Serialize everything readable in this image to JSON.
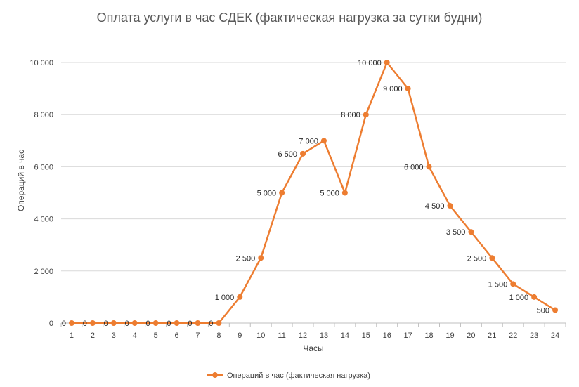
{
  "chart_data": {
    "type": "line",
    "title": "Оплата услуги в час СДЕК (фактическая нагрузка за сутки будни)",
    "xlabel": "Часы",
    "ylabel": "Операций в  час",
    "categories": [
      "1",
      "2",
      "3",
      "4",
      "5",
      "6",
      "7",
      "8",
      "9",
      "10",
      "11",
      "12",
      "13",
      "14",
      "15",
      "16",
      "17",
      "18",
      "19",
      "20",
      "21",
      "22",
      "23",
      "24"
    ],
    "series": [
      {
        "name": "Операций в час (фактическая нагрузка)",
        "values": [
          0,
          0,
          0,
          0,
          0,
          0,
          0,
          0,
          1000,
          2500,
          5000,
          6500,
          7000,
          5000,
          8000,
          10000,
          9000,
          6000,
          4500,
          3500,
          2500,
          1500,
          1000,
          500
        ],
        "labels": [
          "0",
          "0",
          "0",
          "0",
          "0",
          "0",
          "0",
          "0",
          "1 000",
          "2 500",
          "5 000",
          "6 500",
          "7 000",
          "5 000",
          "8 000",
          "10 000",
          "9 000",
          "6 000",
          "4 500",
          "3 500",
          "2 500",
          "1 500",
          "1 000",
          "500"
        ]
      }
    ],
    "ylim": [
      0,
      10000
    ],
    "yticks": [
      0,
      2000,
      4000,
      6000,
      8000,
      10000
    ],
    "ytick_labels": [
      "0",
      "2 000",
      "4 000",
      "6 000",
      "8 000",
      "10 000"
    ],
    "grid": true,
    "legend": "bottom",
    "colors": {
      "series": "#ED7D31",
      "grid": "#D9D9D9",
      "axis": "#BFBFBF"
    }
  }
}
